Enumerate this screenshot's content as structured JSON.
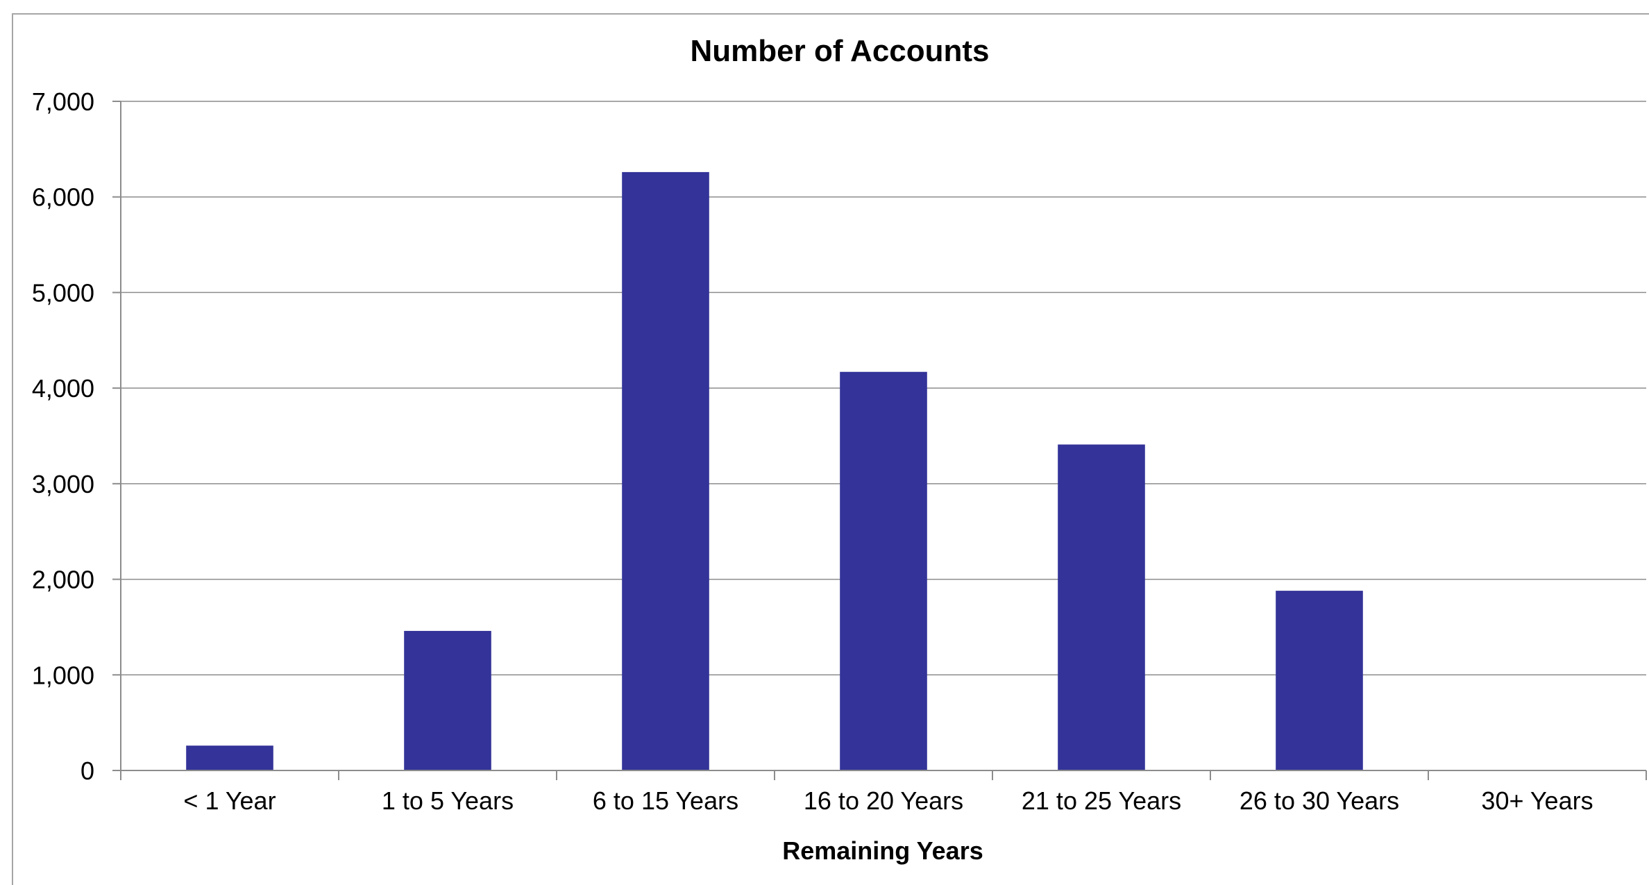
{
  "chart_data": {
    "type": "bar",
    "title": "Number of Accounts",
    "xlabel": "Remaining Years",
    "ylabel": "",
    "categories": [
      "< 1 Year",
      "1 to 5 Years",
      "6 to 15 Years",
      "16 to 20 Years",
      "21 to 25 Years",
      "26 to 30 Years",
      "30+ Years"
    ],
    "values": [
      260,
      1460,
      6260,
      4170,
      3410,
      1880,
      0
    ],
    "ylim": [
      0,
      7000
    ],
    "yticks": [
      0,
      1000,
      2000,
      3000,
      4000,
      5000,
      6000,
      7000
    ],
    "ytick_labels": [
      "0",
      "1,000",
      "2,000",
      "3,000",
      "4,000",
      "5,000",
      "6,000",
      "7,000"
    ],
    "grid": "horizontal",
    "legend": "none",
    "bar_color": "#333399"
  }
}
